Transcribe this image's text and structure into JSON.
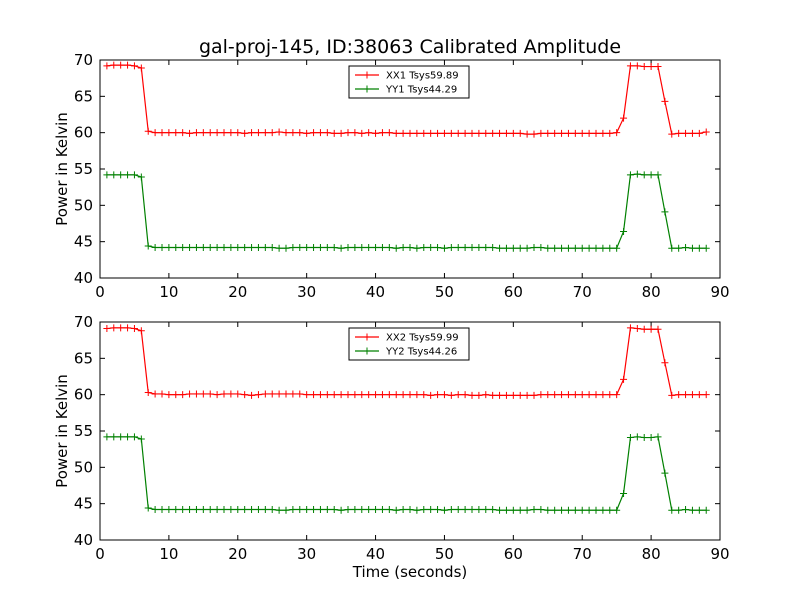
{
  "figure": {
    "title": "gal-proj-145, ID:38063 Calibrated Amplitude",
    "xlabel": "Time (seconds)"
  },
  "chart_data": [
    {
      "type": "line",
      "ylabel": "Power in Kelvin",
      "xlim": [
        0,
        90
      ],
      "ylim": [
        40,
        70
      ],
      "xticks": [
        0,
        10,
        20,
        30,
        40,
        50,
        60,
        70,
        80,
        90
      ],
      "yticks": [
        40,
        45,
        50,
        55,
        60,
        65,
        70
      ],
      "grid": false,
      "legend_position": "top-center",
      "x": [
        1,
        2,
        3,
        4,
        5,
        6,
        7,
        8,
        9,
        10,
        11,
        12,
        13,
        14,
        15,
        16,
        17,
        18,
        19,
        20,
        21,
        22,
        23,
        24,
        25,
        26,
        27,
        28,
        29,
        30,
        31,
        32,
        33,
        34,
        35,
        36,
        37,
        38,
        39,
        40,
        41,
        42,
        43,
        44,
        45,
        46,
        47,
        48,
        49,
        50,
        51,
        52,
        53,
        54,
        55,
        56,
        57,
        58,
        59,
        60,
        61,
        62,
        63,
        64,
        65,
        66,
        67,
        68,
        69,
        70,
        71,
        72,
        73,
        74,
        75,
        76,
        77,
        78,
        79,
        80,
        81,
        82,
        83,
        84,
        85,
        86,
        87,
        88
      ],
      "series": [
        {
          "name": "XX1 Tsys59.89",
          "color": "#ff0000",
          "values": [
            69.2,
            69.3,
            69.3,
            69.3,
            69.2,
            68.9,
            60.2,
            60.0,
            60.0,
            60.0,
            60.0,
            60.0,
            59.9,
            60.0,
            60.0,
            60.0,
            60.0,
            60.0,
            60.0,
            60.0,
            59.9,
            60.0,
            60.0,
            60.0,
            60.0,
            60.1,
            60.0,
            60.0,
            60.0,
            59.9,
            60.0,
            60.0,
            60.0,
            59.9,
            59.9,
            60.0,
            60.0,
            59.9,
            60.0,
            59.9,
            60.0,
            60.0,
            59.9,
            59.9,
            59.9,
            59.9,
            59.9,
            59.9,
            59.9,
            59.9,
            59.9,
            59.9,
            59.9,
            59.9,
            59.9,
            59.9,
            59.9,
            59.9,
            59.9,
            59.9,
            59.9,
            59.8,
            59.8,
            59.9,
            59.9,
            59.9,
            59.9,
            59.9,
            59.9,
            59.9,
            59.9,
            59.9,
            59.9,
            59.9,
            60.0,
            62.0,
            69.2,
            69.2,
            69.1,
            69.1,
            69.1,
            64.3,
            59.8,
            59.9,
            59.9,
            59.9,
            59.9,
            60.1
          ]
        },
        {
          "name": "YY1 Tsys44.29",
          "color": "#008000",
          "values": [
            54.2,
            54.2,
            54.2,
            54.2,
            54.2,
            53.9,
            44.4,
            44.2,
            44.2,
            44.2,
            44.2,
            44.2,
            44.2,
            44.2,
            44.2,
            44.2,
            44.2,
            44.2,
            44.2,
            44.2,
            44.2,
            44.2,
            44.2,
            44.2,
            44.2,
            44.1,
            44.1,
            44.2,
            44.2,
            44.2,
            44.2,
            44.2,
            44.2,
            44.2,
            44.1,
            44.2,
            44.2,
            44.2,
            44.2,
            44.2,
            44.2,
            44.2,
            44.1,
            44.2,
            44.2,
            44.1,
            44.2,
            44.2,
            44.2,
            44.1,
            44.2,
            44.2,
            44.2,
            44.2,
            44.2,
            44.2,
            44.2,
            44.1,
            44.1,
            44.1,
            44.1,
            44.1,
            44.2,
            44.2,
            44.1,
            44.1,
            44.1,
            44.1,
            44.1,
            44.1,
            44.1,
            44.1,
            44.1,
            44.1,
            44.1,
            46.4,
            54.2,
            54.3,
            54.2,
            54.2,
            54.2,
            49.1,
            44.1,
            44.1,
            44.2,
            44.1,
            44.1,
            44.1
          ]
        }
      ]
    },
    {
      "type": "line",
      "ylabel": "Power in Kelvin",
      "xlim": [
        0,
        90
      ],
      "ylim": [
        40,
        70
      ],
      "xticks": [
        0,
        10,
        20,
        30,
        40,
        50,
        60,
        70,
        80,
        90
      ],
      "yticks": [
        40,
        45,
        50,
        55,
        60,
        65,
        70
      ],
      "grid": false,
      "legend_position": "top-center",
      "x": [
        1,
        2,
        3,
        4,
        5,
        6,
        7,
        8,
        9,
        10,
        11,
        12,
        13,
        14,
        15,
        16,
        17,
        18,
        19,
        20,
        21,
        22,
        23,
        24,
        25,
        26,
        27,
        28,
        29,
        30,
        31,
        32,
        33,
        34,
        35,
        36,
        37,
        38,
        39,
        40,
        41,
        42,
        43,
        44,
        45,
        46,
        47,
        48,
        49,
        50,
        51,
        52,
        53,
        54,
        55,
        56,
        57,
        58,
        59,
        60,
        61,
        62,
        63,
        64,
        65,
        66,
        67,
        68,
        69,
        70,
        71,
        72,
        73,
        74,
        75,
        76,
        77,
        78,
        79,
        80,
        81,
        82,
        83,
        84,
        85,
        86,
        87,
        88
      ],
      "series": [
        {
          "name": "XX2 Tsys59.99",
          "color": "#ff0000",
          "values": [
            69.1,
            69.2,
            69.2,
            69.2,
            69.1,
            68.8,
            60.3,
            60.1,
            60.1,
            60.0,
            60.0,
            60.0,
            60.1,
            60.1,
            60.1,
            60.1,
            60.0,
            60.1,
            60.1,
            60.1,
            60.0,
            59.9,
            60.0,
            60.1,
            60.1,
            60.1,
            60.1,
            60.1,
            60.1,
            60.0,
            60.0,
            60.0,
            60.0,
            60.0,
            60.0,
            60.0,
            60.0,
            60.0,
            60.0,
            60.0,
            60.0,
            60.0,
            60.0,
            60.0,
            60.0,
            60.0,
            60.0,
            59.9,
            60.0,
            60.0,
            59.9,
            60.0,
            60.0,
            59.9,
            59.9,
            60.0,
            59.9,
            59.9,
            59.9,
            59.9,
            59.9,
            59.9,
            59.9,
            60.0,
            60.0,
            60.0,
            60.0,
            60.0,
            60.0,
            60.0,
            60.0,
            60.0,
            60.0,
            60.0,
            60.0,
            62.1,
            69.2,
            69.1,
            69.0,
            69.0,
            69.0,
            64.4,
            59.9,
            60.0,
            60.0,
            60.0,
            60.0,
            60.0
          ]
        },
        {
          "name": "YY2 Tsys44.26",
          "color": "#008000",
          "values": [
            54.2,
            54.2,
            54.2,
            54.2,
            54.2,
            53.9,
            44.4,
            44.2,
            44.2,
            44.2,
            44.2,
            44.2,
            44.2,
            44.2,
            44.2,
            44.2,
            44.2,
            44.2,
            44.2,
            44.2,
            44.2,
            44.2,
            44.2,
            44.2,
            44.2,
            44.1,
            44.1,
            44.2,
            44.2,
            44.2,
            44.2,
            44.2,
            44.2,
            44.2,
            44.1,
            44.2,
            44.2,
            44.2,
            44.2,
            44.2,
            44.2,
            44.2,
            44.1,
            44.2,
            44.2,
            44.1,
            44.2,
            44.2,
            44.2,
            44.1,
            44.2,
            44.2,
            44.2,
            44.2,
            44.2,
            44.2,
            44.2,
            44.1,
            44.1,
            44.1,
            44.1,
            44.1,
            44.2,
            44.2,
            44.1,
            44.1,
            44.1,
            44.1,
            44.1,
            44.1,
            44.1,
            44.1,
            44.1,
            44.1,
            44.1,
            46.4,
            54.1,
            54.2,
            54.1,
            54.1,
            54.2,
            49.2,
            44.1,
            44.1,
            44.2,
            44.1,
            44.1,
            44.1
          ]
        }
      ]
    }
  ]
}
